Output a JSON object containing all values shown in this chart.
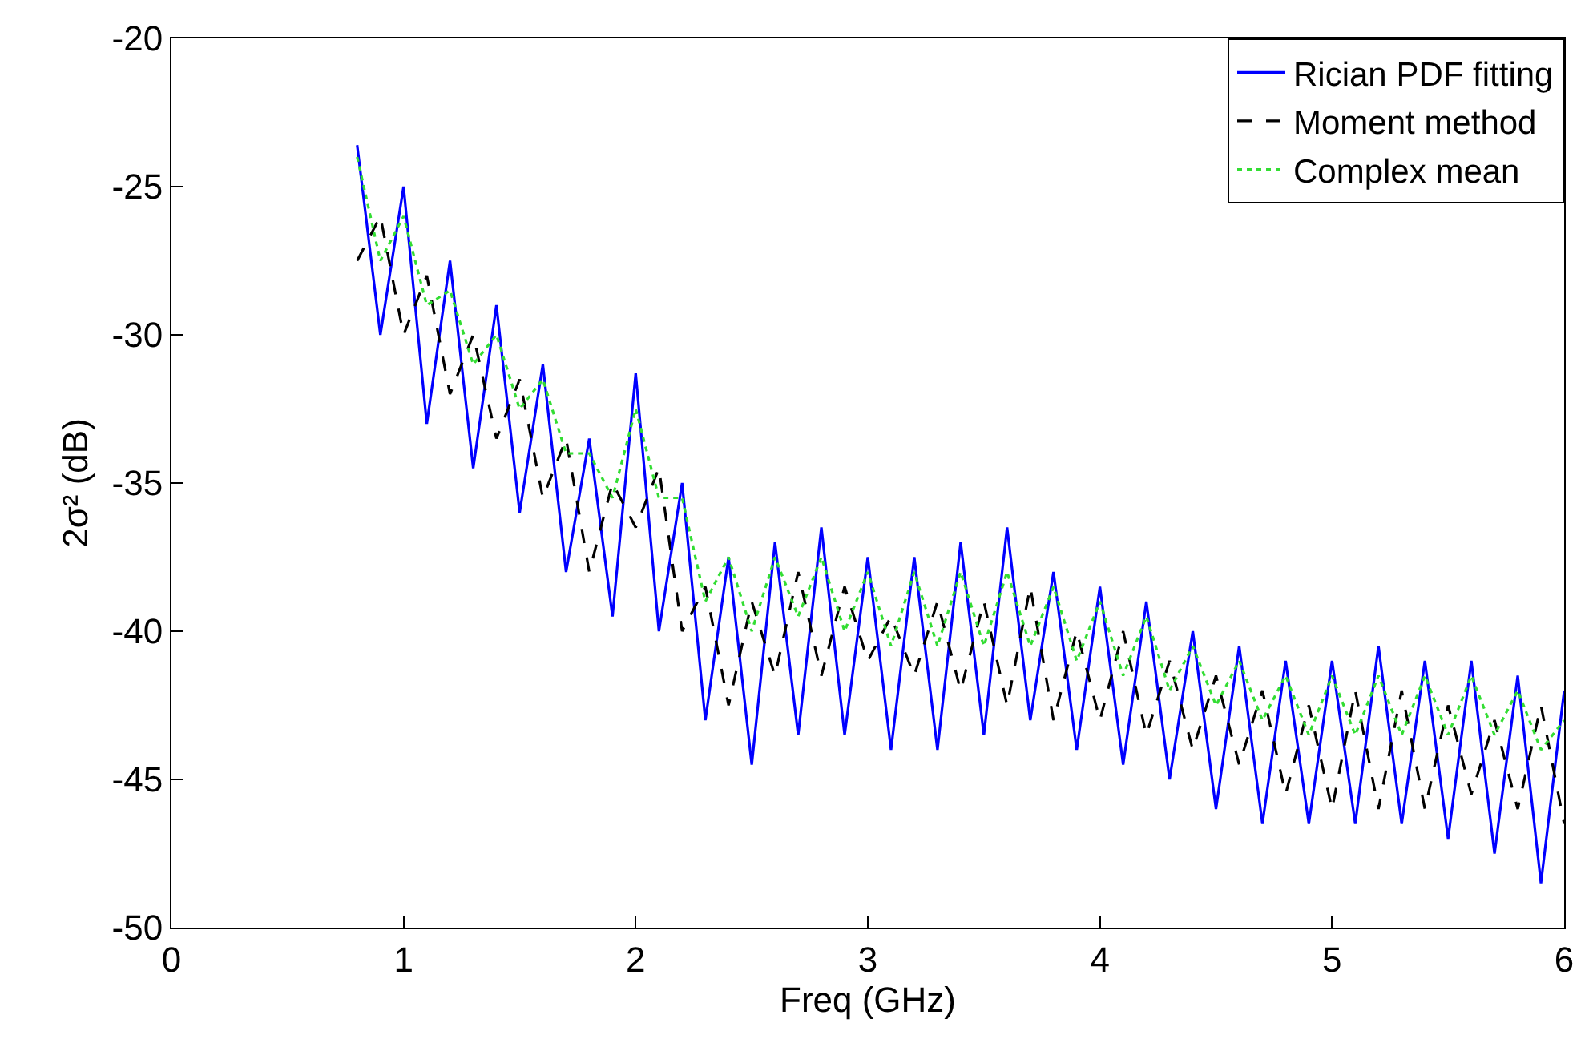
{
  "chart_data": {
    "type": "line",
    "xlabel": "Freq (GHz)",
    "ylabel": "2σ² (dB)",
    "x": [
      0.8,
      0.9,
      1.0,
      1.1,
      1.2,
      1.3,
      1.4,
      1.5,
      1.6,
      1.7,
      1.8,
      1.9,
      2.0,
      2.1,
      2.2,
      2.3,
      2.4,
      2.5,
      2.6,
      2.7,
      2.8,
      2.9,
      3.0,
      3.1,
      3.2,
      3.3,
      3.4,
      3.5,
      3.6,
      3.7,
      3.8,
      3.9,
      4.0,
      4.1,
      4.2,
      4.3,
      4.4,
      4.5,
      4.6,
      4.7,
      4.8,
      4.9,
      5.0,
      5.1,
      5.2,
      5.3,
      5.4,
      5.5,
      5.6,
      5.7,
      5.8,
      5.9,
      6.0
    ],
    "series": [
      {
        "name": "Rician PDF fitting",
        "color": "#0000ff",
        "line_style": "solid",
        "values": [
          -23.6,
          -30,
          -25,
          -33,
          -27.5,
          -34.5,
          -29,
          -36,
          -31,
          -38,
          -33.5,
          -39.5,
          -31.3,
          -40,
          -35,
          -43,
          -37.5,
          -44.5,
          -37,
          -43.5,
          -36.5,
          -43.5,
          -37.5,
          -44,
          -37.5,
          -44,
          -37,
          -43.5,
          -36.5,
          -43,
          -38,
          -44,
          -38.5,
          -44.5,
          -39,
          -45,
          -40,
          -46,
          -40.5,
          -46.5,
          -41,
          -46.5,
          -41,
          -46.5,
          -40.5,
          -46.5,
          -41,
          -47,
          -41,
          -47.5,
          -41.5,
          -48.5,
          -42
        ]
      },
      {
        "name": "Moment method",
        "color": "#000000",
        "line_style": "dashed",
        "values": [
          -27.5,
          -26,
          -30,
          -28,
          -32,
          -30,
          -33.5,
          -31.5,
          -35.5,
          -33.5,
          -38,
          -35,
          -36.5,
          -34.5,
          -40,
          -38.5,
          -42.5,
          -39,
          -41.5,
          -38,
          -41.5,
          -38.5,
          -41,
          -39.5,
          -41.5,
          -39,
          -42,
          -39,
          -42.5,
          -38.5,
          -43,
          -40,
          -43,
          -40,
          -43.5,
          -41,
          -44,
          -41.5,
          -44.5,
          -42,
          -45.5,
          -42.5,
          -46,
          -42,
          -46,
          -42,
          -46,
          -42.5,
          -45.5,
          -43,
          -46,
          -42.5,
          -46.5
        ]
      },
      {
        "name": "Complex mean",
        "color": "#33dd33",
        "line_style": "dotted",
        "values": [
          -24,
          -27.5,
          -26,
          -29,
          -28.5,
          -31,
          -30,
          -32.5,
          -31.5,
          -34,
          -34,
          -35.5,
          -32.5,
          -35.5,
          -35.5,
          -39,
          -37.5,
          -40,
          -37.5,
          -39.5,
          -37.5,
          -40,
          -38,
          -40.5,
          -38,
          -40.5,
          -38,
          -40.5,
          -38,
          -40.5,
          -38.5,
          -41,
          -39,
          -41.5,
          -39.5,
          -42,
          -40.5,
          -42.5,
          -41,
          -43,
          -41.5,
          -43.5,
          -41.5,
          -43.5,
          -41.5,
          -43.5,
          -41.5,
          -43.5,
          -41.5,
          -43.5,
          -42,
          -44,
          -43
        ]
      }
    ],
    "xlim": [
      0,
      6
    ],
    "xticks": [
      0,
      1,
      2,
      3,
      4,
      5,
      6
    ],
    "ylim": [
      -50,
      -20
    ],
    "yticks": [
      -50,
      -45,
      -40,
      -35,
      -30,
      -25,
      -20
    ],
    "legend": "top right",
    "marker": "none"
  }
}
